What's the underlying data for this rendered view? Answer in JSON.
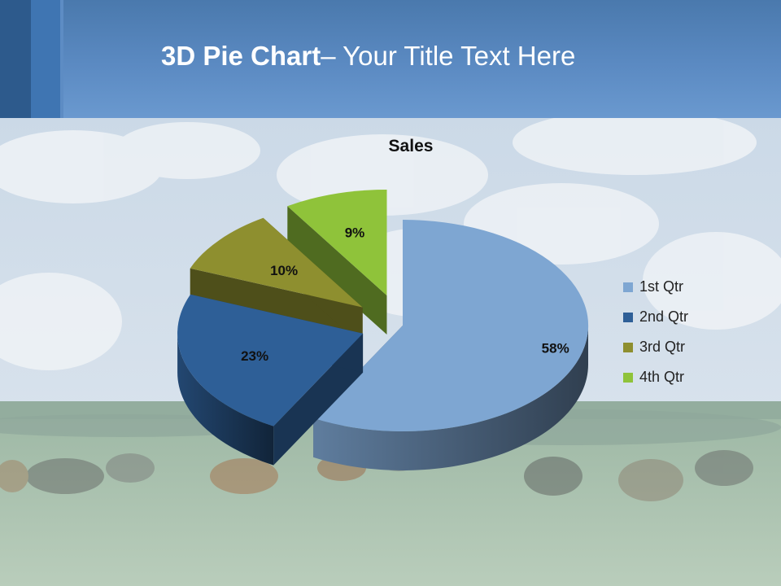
{
  "slide": {
    "title_bold": "3D Pie Chart",
    "title_rest": "– Your Title Text Here"
  },
  "chart_data": {
    "type": "pie",
    "title": "Sales",
    "categories": [
      "1st Qtr",
      "2nd Qtr",
      "3rd Qtr",
      "4th Qtr"
    ],
    "values": [
      58,
      23,
      10,
      9
    ],
    "data_labels": [
      "58%",
      "23%",
      "10%",
      "9%"
    ],
    "colors": [
      "#7ea6d2",
      "#2e5f97",
      "#8e8f2f",
      "#8fc33a"
    ],
    "legend_position": "right",
    "exploded": true,
    "style": "3d"
  }
}
